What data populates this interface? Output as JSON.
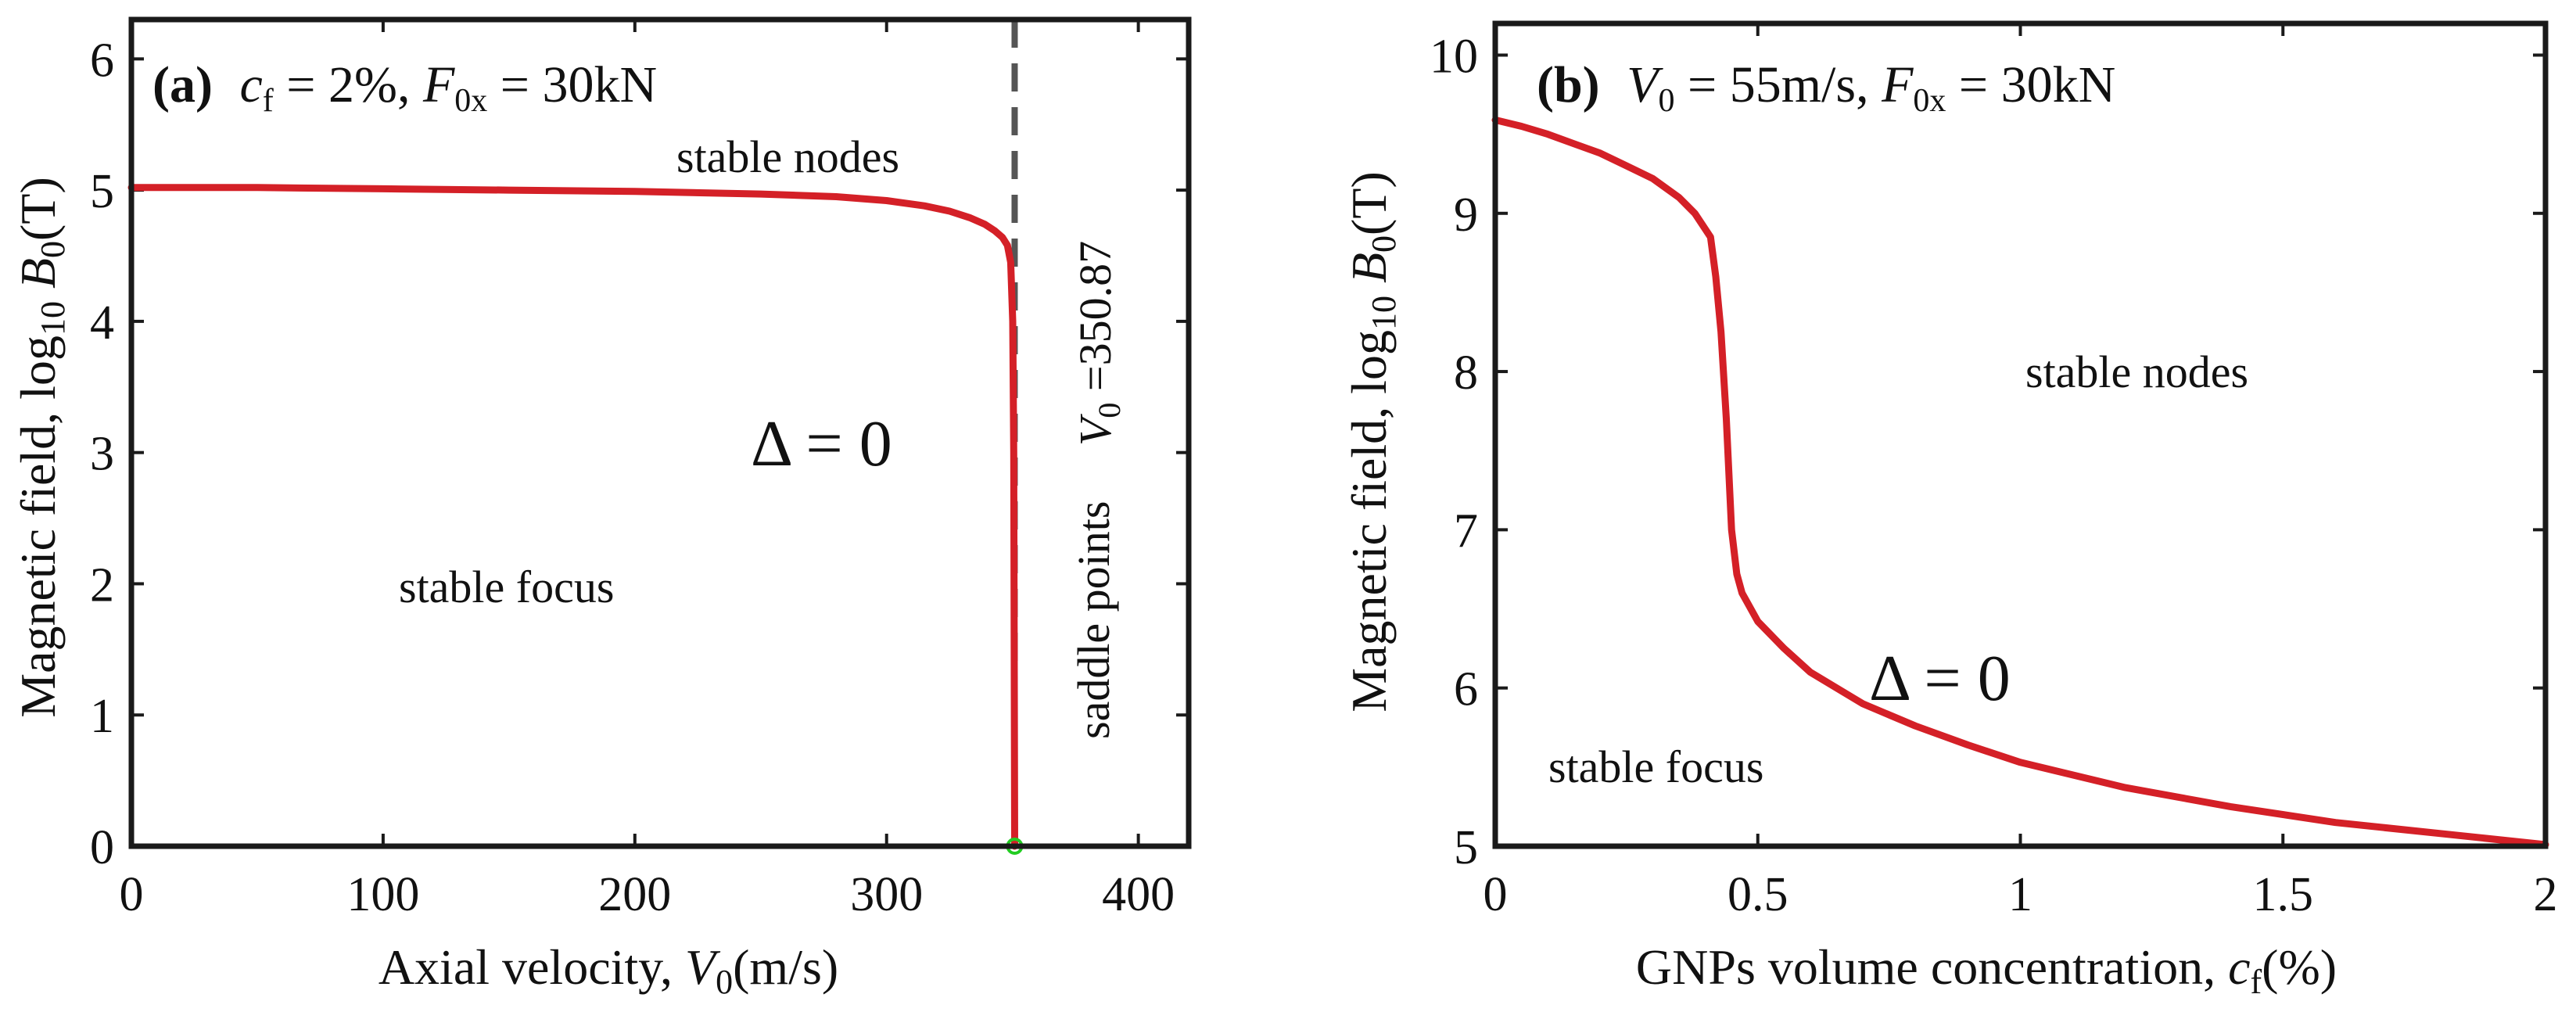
{
  "figure": {
    "background": "#ffffff"
  },
  "chart_data": [
    {
      "type": "line",
      "panel_label": "(a)",
      "params": {
        "part1": "c",
        "part1_sub": "f",
        "part2": " = 2%, ",
        "part3": "F",
        "part3_sub": "0x",
        "part4": " = 30kN"
      },
      "xlabel": {
        "prefix": "Axial velocity, ",
        "var": "V",
        "sub": "0",
        "unit": "(m/s)"
      },
      "ylabel": {
        "prefix": "Magnetic field, log",
        "sub1": "10",
        "var": " B",
        "sub2": "0",
        "unit": "(T)"
      },
      "xlim": [
        0,
        420
      ],
      "ylim": [
        0,
        6.3
      ],
      "xticks": [
        0,
        100,
        200,
        300,
        400
      ],
      "yticks": [
        0,
        1,
        2,
        3,
        4,
        5,
        6
      ],
      "series": [
        {
          "name": "Δ = 0",
          "color": "#d42027",
          "x": [
            0,
            50,
            100,
            150,
            200,
            250,
            280,
            300,
            315,
            325,
            333,
            339,
            343,
            346,
            348,
            349.3,
            350.1,
            350.5,
            350.7,
            350.87
          ],
          "y": [
            5.02,
            5.02,
            5.01,
            5.0,
            4.99,
            4.97,
            4.95,
            4.92,
            4.88,
            4.84,
            4.79,
            4.74,
            4.69,
            4.64,
            4.58,
            4.45,
            4.0,
            3.0,
            1.5,
            0.0
          ]
        }
      ],
      "vline": {
        "x": 350.87,
        "color": "#555555",
        "style": "dashed",
        "label_var": "V",
        "label_sub": "0",
        "label_value": " =350.87"
      },
      "marker": {
        "x": 350.87,
        "y": 0,
        "color": "#22cc22"
      },
      "annotations": {
        "delta": "Δ = 0",
        "stable_nodes": "stable nodes",
        "stable_focus": "stable focus",
        "saddle_points": "saddle points"
      }
    },
    {
      "type": "line",
      "panel_label": "(b)",
      "params": {
        "part1": "V",
        "part1_sub": "0",
        "part2": " = 55m/s, ",
        "part3": "F",
        "part3_sub": "0x",
        "part4": " = 30kN"
      },
      "xlabel": {
        "prefix": "GNPs volume concentration, ",
        "var": "c",
        "sub": "f",
        "unit": "(%)"
      },
      "ylabel": {
        "prefix": "Magnetic field, log",
        "sub1": "10",
        "var": " B",
        "sub2": "0",
        "unit": "(T)"
      },
      "xlim": [
        0,
        2
      ],
      "ylim": [
        5,
        10.2
      ],
      "xticks": [
        0,
        0.5,
        1,
        1.5,
        2
      ],
      "xtick_labels": [
        "0",
        "0.5",
        "1",
        "1.5",
        "2"
      ],
      "yticks": [
        5,
        6,
        7,
        8,
        9,
        10
      ],
      "series": [
        {
          "name": "Δ = 0",
          "color": "#d42027",
          "x": [
            0,
            0.05,
            0.1,
            0.15,
            0.2,
            0.25,
            0.3,
            0.35,
            0.38,
            0.41,
            0.42,
            0.43,
            0.44,
            0.45,
            0.46,
            0.47,
            0.5,
            0.55,
            0.6,
            0.7,
            0.8,
            0.9,
            1.0,
            1.2,
            1.4,
            1.6,
            1.8,
            2.0
          ],
          "y": [
            9.59,
            9.55,
            9.5,
            9.44,
            9.38,
            9.3,
            9.22,
            9.1,
            9.0,
            8.85,
            8.6,
            8.25,
            7.7,
            7.0,
            6.72,
            6.6,
            6.42,
            6.25,
            6.1,
            5.9,
            5.76,
            5.64,
            5.53,
            5.37,
            5.25,
            5.15,
            5.08,
            5.01
          ]
        }
      ],
      "annotations": {
        "delta": "Δ = 0",
        "stable_nodes": "stable nodes",
        "stable_focus": "stable focus"
      }
    }
  ]
}
